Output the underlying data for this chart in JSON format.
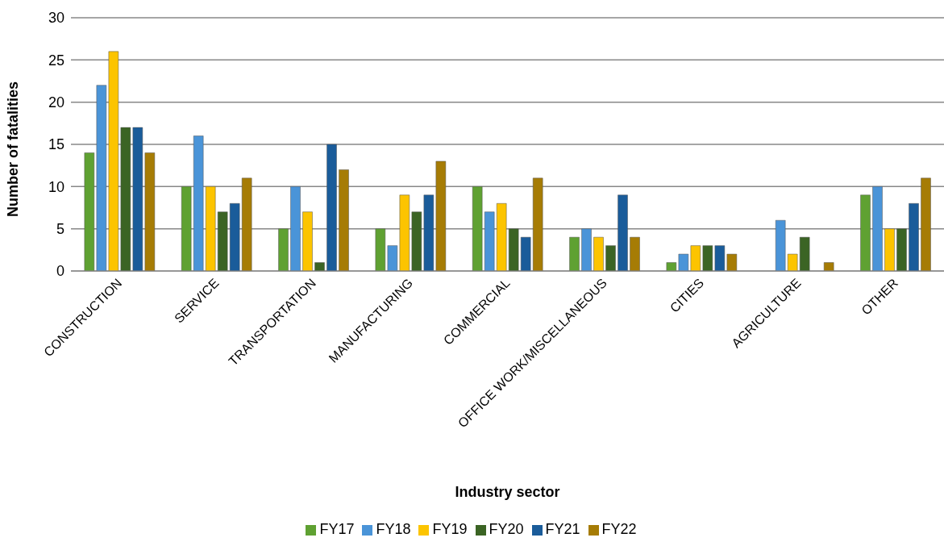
{
  "chart_data": {
    "type": "bar",
    "xlabel": "Industry sector",
    "ylabel": "Number of fatalities",
    "categories": [
      "CONSTRUCTION",
      "SERVICE",
      "TRANSPORTATION",
      "MANUFACTURING",
      "COMMERCIAL",
      "OFFICE WORK/MISCELLANEOUS",
      "CITIES",
      "AGRICULTURE",
      "OTHER"
    ],
    "series": [
      {
        "name": "FY17",
        "color": "#5fa132",
        "values": [
          14,
          10,
          5,
          5,
          10,
          4,
          1,
          0,
          9
        ]
      },
      {
        "name": "FY18",
        "color": "#4a94d8",
        "values": [
          22,
          16,
          10,
          3,
          7,
          5,
          2,
          6,
          10
        ]
      },
      {
        "name": "FY19",
        "color": "#fcc400",
        "values": [
          26,
          10,
          7,
          9,
          8,
          4,
          3,
          2,
          5
        ]
      },
      {
        "name": "FY20",
        "color": "#3b6424",
        "values": [
          17,
          7,
          1,
          7,
          5,
          3,
          3,
          4,
          5
        ]
      },
      {
        "name": "FY21",
        "color": "#1a5c9a",
        "values": [
          17,
          8,
          15,
          9,
          4,
          9,
          3,
          0,
          8
        ]
      },
      {
        "name": "FY22",
        "color": "#a67c05",
        "values": [
          14,
          11,
          12,
          13,
          11,
          4,
          2,
          1,
          11
        ]
      }
    ],
    "ylim": [
      0,
      30
    ],
    "yticks": [
      0,
      5,
      10,
      15,
      20,
      25,
      30
    ],
    "grid": "y",
    "legend": "bottom"
  }
}
